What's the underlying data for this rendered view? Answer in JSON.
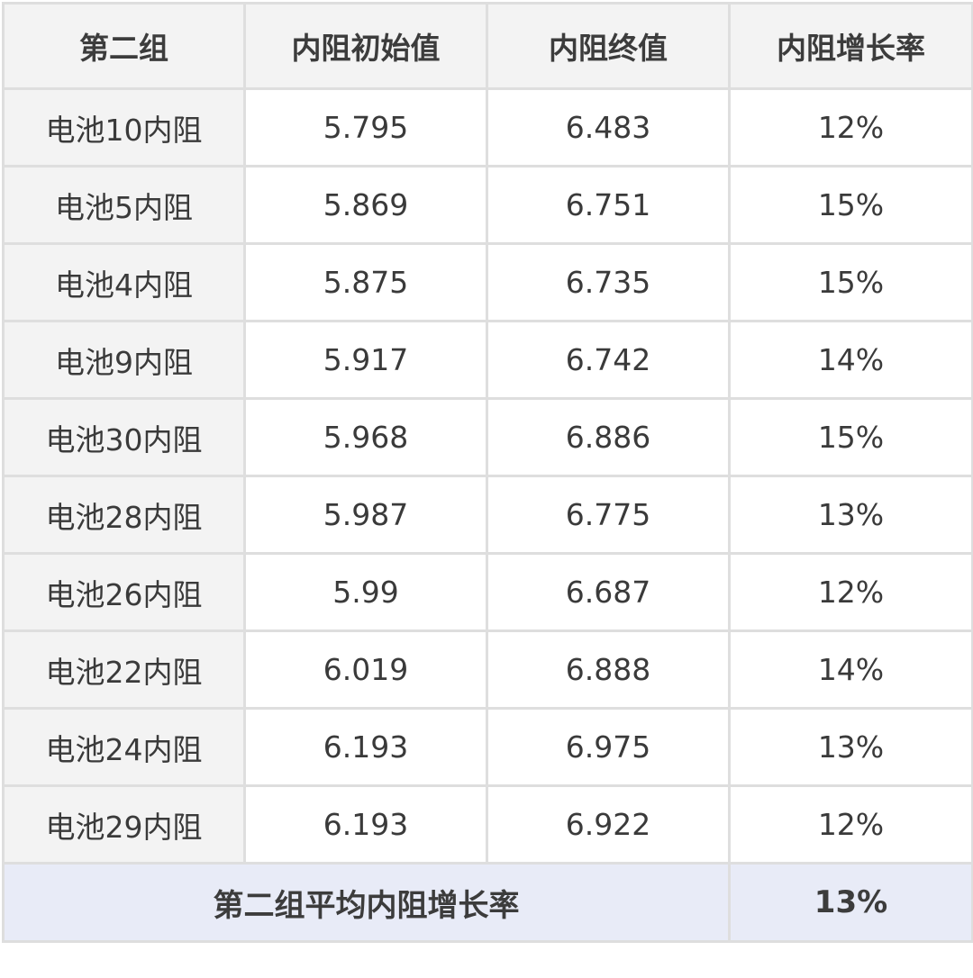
{
  "headers": [
    "第二组",
    "内阻初始值",
    "内阻终值",
    "内阻增长率"
  ],
  "rows": [
    {
      "name": "电池10内阻",
      "initial": "5.795",
      "final": "6.483",
      "rate": "12%"
    },
    {
      "name": "电池5内阻",
      "initial": "5.869",
      "final": "6.751",
      "rate": "15%"
    },
    {
      "name": "电池4内阻",
      "initial": "5.875",
      "final": "6.735",
      "rate": "15%"
    },
    {
      "name": "电池9内阻",
      "initial": "5.917",
      "final": "6.742",
      "rate": "14%"
    },
    {
      "name": "电池30内阻",
      "initial": "5.968",
      "final": "6.886",
      "rate": "15%"
    },
    {
      "name": "电池28内阻",
      "initial": "5.987",
      "final": "6.775",
      "rate": "13%"
    },
    {
      "name": "电池26内阻",
      "initial": "5.99",
      "final": "6.687",
      "rate": "12%"
    },
    {
      "name": "电池22内阻",
      "initial": "6.019",
      "final": "6.888",
      "rate": "14%"
    },
    {
      "name": "电池24内阻",
      "initial": "6.193",
      "final": "6.975",
      "rate": "13%"
    },
    {
      "name": "电池29内阻",
      "initial": "6.193",
      "final": "6.922",
      "rate": "12%"
    }
  ],
  "footer": {
    "label": "第二组平均内阻增长率",
    "value": "13%"
  }
}
